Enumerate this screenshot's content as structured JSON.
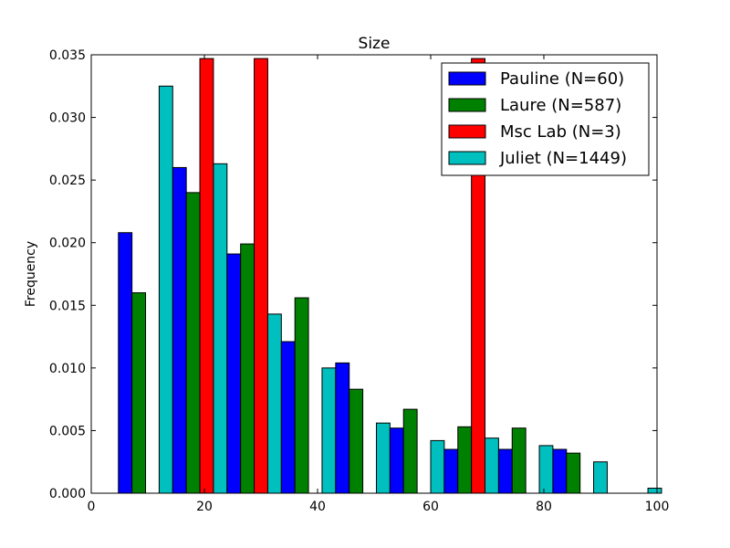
{
  "chart_data": {
    "type": "bar",
    "title": "Size",
    "xlabel": "",
    "ylabel": "Frequency",
    "xlim": [
      0,
      100
    ],
    "ylim": [
      0,
      0.035
    ],
    "x_ticks": [
      0,
      20,
      40,
      60,
      80,
      100
    ],
    "y_ticks": [
      "0.000",
      "0.005",
      "0.010",
      "0.015",
      "0.020",
      "0.025",
      "0.030",
      "0.035"
    ],
    "bin_edges": [
      4.8,
      14.4,
      24.0,
      33.6,
      43.2,
      52.8,
      62.4,
      72.0,
      81.6,
      91.2,
      100.8
    ],
    "legend_placement": "top-right",
    "grid": false,
    "series": [
      {
        "name": "Pauline (N=60)",
        "color": "#0000ff",
        "values": [
          0.0208,
          0.026,
          0.0191,
          0.0121,
          0.0104,
          0.0052,
          0.0035,
          0.0035,
          0.0035,
          0.0
        ]
      },
      {
        "name": "Laure (N=587)",
        "color": "#008000",
        "values": [
          0.016,
          0.024,
          0.0199,
          0.0156,
          0.0083,
          0.0067,
          0.0053,
          0.0052,
          0.0032,
          0.0
        ]
      },
      {
        "name": "Msc Lab (N=3)",
        "color": "#ff0000",
        "values": [
          0.0,
          0.0347,
          0.0347,
          0.0,
          0.0,
          0.0,
          0.0347,
          0.0,
          0.0,
          0.0
        ]
      },
      {
        "name": "Juliet (N=1449)",
        "color": "#00bfbf",
        "values": [
          0.0325,
          0.0263,
          0.0143,
          0.01,
          0.0056,
          0.0042,
          0.0044,
          0.0038,
          0.0025,
          0.0004
        ]
      }
    ]
  }
}
